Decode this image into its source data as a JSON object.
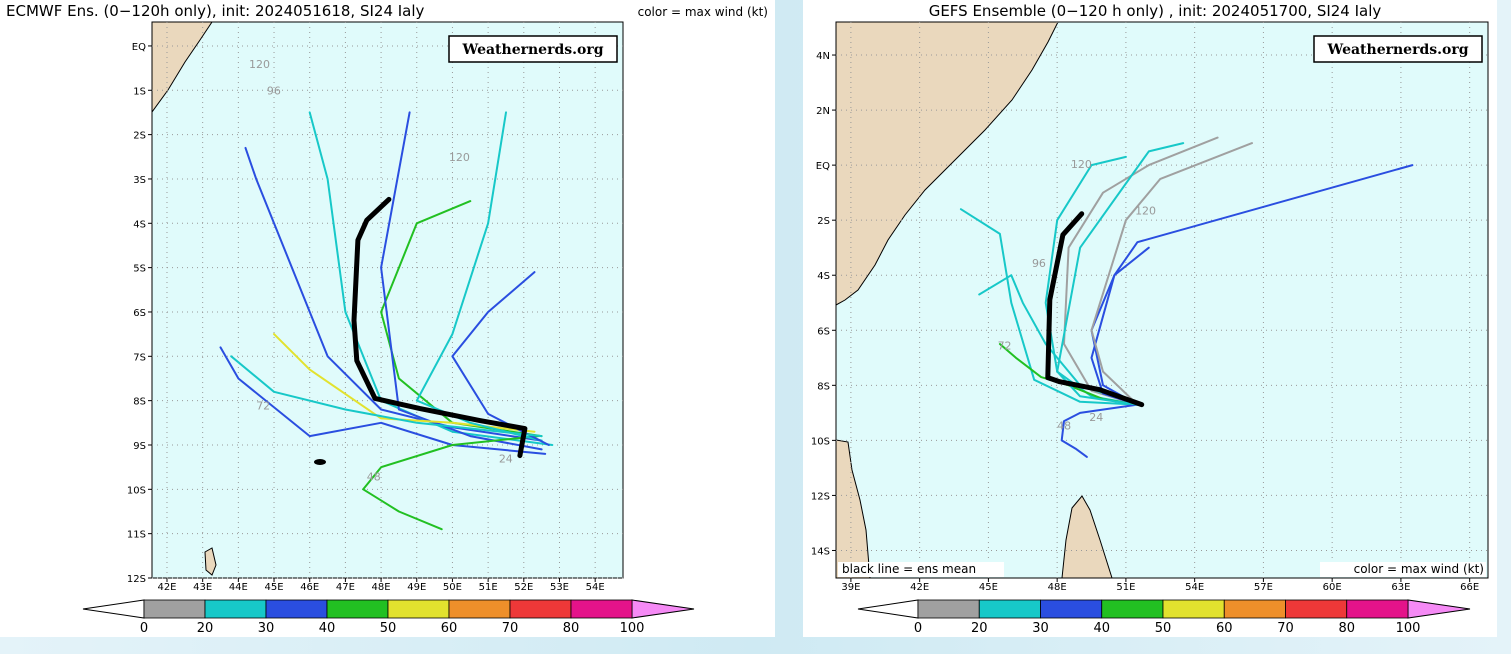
{
  "chart_data": [
    {
      "type": "track-map",
      "title": "ECMWF Ens. (0−120h only), init: 2024051618, SI24 Ialy",
      "subtitle": "color = max wind (kt)",
      "watermark": "Weathernerds.org",
      "xlim": [
        41.58,
        54.78
      ],
      "ylim": [
        -12,
        0.54
      ],
      "xticks": [
        {
          "value": 42,
          "label": "42E"
        },
        {
          "value": 43,
          "label": "43E"
        },
        {
          "value": 44,
          "label": "44E"
        },
        {
          "value": 45,
          "label": "45E"
        },
        {
          "value": 46,
          "label": "46E"
        },
        {
          "value": 47,
          "label": "47E"
        },
        {
          "value": 48,
          "label": "48E"
        },
        {
          "value": 49,
          "label": "49E"
        },
        {
          "value": 50,
          "label": "50E"
        },
        {
          "value": 51,
          "label": "51E"
        },
        {
          "value": 52,
          "label": "52E"
        },
        {
          "value": 53,
          "label": "53E"
        },
        {
          "value": 54,
          "label": "54E"
        }
      ],
      "yticks": [
        {
          "value": 0,
          "label": "EQ"
        },
        {
          "value": -1,
          "label": "1S"
        },
        {
          "value": -2,
          "label": "2S"
        },
        {
          "value": -3,
          "label": "3S"
        },
        {
          "value": -4,
          "label": "4S"
        },
        {
          "value": -5,
          "label": "5S"
        },
        {
          "value": -6,
          "label": "6S"
        },
        {
          "value": -7,
          "label": "7S"
        },
        {
          "value": -8,
          "label": "8S"
        },
        {
          "value": -9,
          "label": "9S"
        },
        {
          "value": -10,
          "label": "10S"
        },
        {
          "value": -11,
          "label": "11S"
        },
        {
          "value": -12,
          "label": "12S"
        }
      ],
      "grid": true,
      "mean_track": {
        "color": "#000000",
        "x": [
          48.22,
          47.6,
          47.35,
          47.24,
          47.32,
          47.83,
          49.09,
          50.77,
          52.03,
          51.89
        ],
        "y": [
          -3.46,
          -3.93,
          -4.38,
          -6.19,
          -7.1,
          -7.95,
          -8.18,
          -8.45,
          -8.63,
          -9.24
        ]
      },
      "series": [
        {
          "color": "#2a4ee0",
          "x": [
            52.5,
            50,
            48,
            46.5,
            45.5,
            44.5,
            44.2
          ],
          "y": [
            -8.9,
            -8.6,
            -8.2,
            -7,
            -5,
            -3,
            -2.3
          ]
        },
        {
          "color": "#17c8c8",
          "x": [
            52.8,
            50,
            48,
            47,
            46.5,
            46
          ],
          "y": [
            -9,
            -8.7,
            -8,
            -6,
            -3,
            -1.5
          ]
        },
        {
          "color": "#22c022",
          "x": [
            52.5,
            50,
            48.5,
            48,
            49,
            50.5
          ],
          "y": [
            -8.8,
            -8.5,
            -7.5,
            -6,
            -4,
            -3.5
          ]
        },
        {
          "color": "#2a4ee0",
          "x": [
            52.5,
            50.5,
            48.5,
            48,
            48.8
          ],
          "y": [
            -9.1,
            -8.8,
            -8.2,
            -5,
            -1.5
          ]
        },
        {
          "color": "#e2e22e",
          "x": [
            52.3,
            50,
            48,
            46,
            45
          ],
          "y": [
            -8.7,
            -8.5,
            -8.4,
            -7.3,
            -6.5
          ]
        },
        {
          "color": "#2a4ee0",
          "x": [
            52.6,
            50,
            48,
            46,
            44,
            43.5
          ],
          "y": [
            -9.2,
            -9,
            -8.5,
            -8.8,
            -7.5,
            -6.8
          ]
        },
        {
          "color": "#22c022",
          "x": [
            52.4,
            50,
            48,
            47.5,
            48.5,
            49.7
          ],
          "y": [
            -8.8,
            -9,
            -9.5,
            -10,
            -10.5,
            -10.9
          ]
        },
        {
          "color": "#17c8c8",
          "x": [
            52.5,
            50.5,
            49,
            50,
            51,
            51.5
          ],
          "y": [
            -8.9,
            -8.5,
            -8,
            -6.5,
            -4,
            -1.5
          ]
        },
        {
          "color": "#2a4ee0",
          "x": [
            52.7,
            51,
            50,
            51,
            52.3
          ],
          "y": [
            -9,
            -8.3,
            -7,
            -6,
            -5.1
          ]
        },
        {
          "color": "#17c8c8",
          "x": [
            52.5,
            49,
            47,
            45,
            43.8
          ],
          "y": [
            -8.8,
            -8.5,
            -8.2,
            -7.8,
            -7
          ]
        }
      ],
      "annotations": [
        {
          "text": "120",
          "x": 44.3,
          "y": -0.5
        },
        {
          "text": "96",
          "x": 44.8,
          "y": -1.1
        },
        {
          "text": "120",
          "x": 49.9,
          "y": -2.6
        },
        {
          "text": "72",
          "x": 44.5,
          "y": -8.2
        },
        {
          "text": "48",
          "x": 47.6,
          "y": -9.8
        },
        {
          "text": "24",
          "x": 51.3,
          "y": -9.4
        }
      ],
      "colorbar": {
        "ticks": [
          0,
          20,
          30,
          40,
          50,
          60,
          70,
          80,
          100
        ],
        "colors": [
          "#a0a0a0",
          "#17c8c8",
          "#2a4ee0",
          "#22c022",
          "#e2e22e",
          "#ee8f2a",
          "#ee3838",
          "#e4138a"
        ],
        "under_color": "#ffffff",
        "over_color": "#f58af5"
      }
    },
    {
      "type": "track-map",
      "title": "GEFS Ensemble (0−120 h only) , init: 2024051700, SI24 Ialy",
      "watermark": "Weathernerds.org",
      "notes": [
        "black line = ens mean",
        "color = max wind (kt)"
      ],
      "xlim": [
        38.35,
        66.8
      ],
      "ylim": [
        -15,
        5.2
      ],
      "xticks": [
        {
          "value": 39,
          "label": "39E"
        },
        {
          "value": 42,
          "label": "42E"
        },
        {
          "value": 45,
          "label": "45E"
        },
        {
          "value": 48,
          "label": "48E"
        },
        {
          "value": 51,
          "label": "51E"
        },
        {
          "value": 54,
          "label": "54E"
        },
        {
          "value": 57,
          "label": "57E"
        },
        {
          "value": 60,
          "label": "60E"
        },
        {
          "value": 63,
          "label": "63E"
        },
        {
          "value": 66,
          "label": "66E"
        }
      ],
      "yticks": [
        {
          "value": 4,
          "label": "4N"
        },
        {
          "value": 2,
          "label": "2N"
        },
        {
          "value": 0,
          "label": "EQ"
        },
        {
          "value": -2,
          "label": "2S"
        },
        {
          "value": -4,
          "label": "4S"
        },
        {
          "value": -6,
          "label": "6S"
        },
        {
          "value": -8,
          "label": "8S"
        },
        {
          "value": -10,
          "label": "10S"
        },
        {
          "value": -12,
          "label": "12S"
        },
        {
          "value": -14,
          "label": "14S"
        }
      ],
      "grid": true,
      "mean_track": {
        "color": "#000000",
        "x": [
          49.07,
          48.25,
          47.68,
          47.59,
          48.11,
          49.86,
          51.69
        ],
        "y": [
          -1.77,
          -2.53,
          -4.89,
          -7.72,
          -7.87,
          -8.16,
          -8.7
        ]
      },
      "series": [
        {
          "color": "#17c8c8",
          "x": [
            51.5,
            49.5,
            48,
            47.5,
            48,
            49.5,
            51
          ],
          "y": [
            -8.7,
            -8.4,
            -7.5,
            -5,
            -2,
            0,
            0.3
          ]
        },
        {
          "color": "#a0a0a0",
          "x": [
            51.5,
            49.5,
            48.3,
            48.5,
            50,
            52,
            55
          ],
          "y": [
            -8.7,
            -8.2,
            -6.5,
            -3,
            -1,
            0,
            1
          ]
        },
        {
          "color": "#2a4ee0",
          "x": [
            51.5,
            50,
            49.5,
            50.5,
            51.5,
            63.5
          ],
          "y": [
            -8.7,
            -8,
            -6,
            -4,
            -2.8,
            0
          ]
        },
        {
          "color": "#17c8c8",
          "x": [
            51.5,
            49,
            47,
            46,
            45.5,
            43.8
          ],
          "y": [
            -8.7,
            -8.6,
            -7.8,
            -5,
            -2.5,
            -1.6
          ]
        },
        {
          "color": "#2a4ee0",
          "x": [
            51.5,
            49,
            48.3,
            48.2,
            48.8,
            49.3
          ],
          "y": [
            -8.7,
            -9,
            -9.3,
            -10,
            -10.3,
            -10.6
          ]
        },
        {
          "color": "#22c022",
          "x": [
            51.5,
            50,
            48.5,
            47.3,
            46.2,
            45.5
          ],
          "y": [
            -8.7,
            -8.5,
            -8,
            -7.7,
            -7,
            -6.5
          ]
        },
        {
          "color": "#17c8c8",
          "x": [
            51.5,
            49,
            47.5,
            46.5,
            46,
            44.6
          ],
          "y": [
            -8.7,
            -8,
            -6.5,
            -5,
            -4,
            -4.7
          ]
        },
        {
          "color": "#2a4ee0",
          "x": [
            51.5,
            50,
            49.5,
            50.5,
            52
          ],
          "y": [
            -8.7,
            -8.3,
            -7,
            -4,
            -3
          ]
        },
        {
          "color": "#17c8c8",
          "x": [
            51.5,
            49,
            48,
            49,
            52,
            53.5
          ],
          "y": [
            -8.7,
            -8.4,
            -7.5,
            -3,
            0.5,
            0.8
          ]
        },
        {
          "color": "#a0a0a0",
          "x": [
            51.5,
            50,
            49.5,
            51,
            52.5,
            56.5
          ],
          "y": [
            -8.7,
            -7.5,
            -6,
            -2,
            -0.5,
            0.8
          ]
        }
      ],
      "annotations": [
        {
          "text": "120",
          "x": 48.6,
          "y": -0.1
        },
        {
          "text": "96",
          "x": 46.9,
          "y": -3.7
        },
        {
          "text": "72",
          "x": 45.4,
          "y": -6.7
        },
        {
          "text": "48",
          "x": 48,
          "y": -9.6
        },
        {
          "text": "24",
          "x": 49.4,
          "y": -9.3
        },
        {
          "text": "120",
          "x": 51.4,
          "y": -1.8
        }
      ],
      "colorbar": {
        "ticks": [
          0,
          20,
          30,
          40,
          50,
          60,
          70,
          80,
          100
        ],
        "colors": [
          "#a0a0a0",
          "#17c8c8",
          "#2a4ee0",
          "#22c022",
          "#e2e22e",
          "#ee8f2a",
          "#ee3838",
          "#e4138a"
        ],
        "under_color": "#ffffff",
        "over_color": "#f58af5"
      }
    }
  ]
}
